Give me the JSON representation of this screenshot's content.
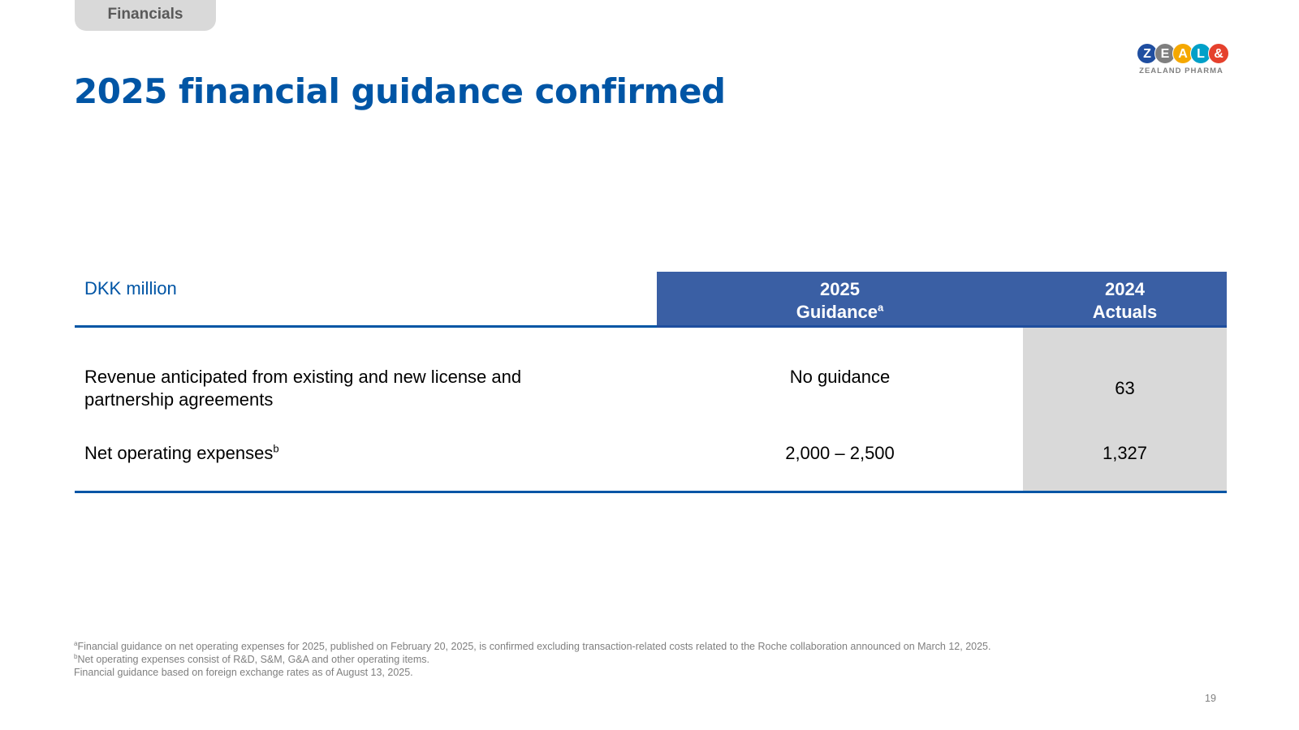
{
  "section_tab": "Financials",
  "title": "2025 financial guidance confirmed",
  "logo": {
    "letters": [
      "Z",
      "E",
      "A",
      "L",
      "&"
    ],
    "colors": [
      "#1f4ea0",
      "#7f7f7f",
      "#f5a800",
      "#00a0c8",
      "#e5412d"
    ],
    "tagline": "ZEALAND PHARMA"
  },
  "table": {
    "unit_label": "DKK million",
    "columns": [
      {
        "line1": "2025",
        "line2": "Guidance",
        "sup": "a"
      },
      {
        "line1": "2024",
        "line2": "Actuals",
        "sup": ""
      }
    ],
    "rows": [
      {
        "label": "Revenue anticipated from existing and new license and partnership agreements",
        "label_sup": "",
        "guidance": "No guidance",
        "actuals": "63"
      },
      {
        "label": "Net operating expenses",
        "label_sup": "b",
        "guidance": "2,000 – 2,500",
        "actuals": "1,327"
      }
    ]
  },
  "footnotes": [
    {
      "sup": "a",
      "text": "Financial guidance on net operating expenses for 2025, published on February 20, 2025, is confirmed excluding transaction-related costs related to the Roche collaboration announced on March 12, 2025."
    },
    {
      "sup": "b",
      "text": "Net operating expenses consist of R&D, S&M, G&A and other operating items."
    },
    {
      "sup": "",
      "text": "Financial guidance based on foreign exchange rates as of August 13, 2025."
    }
  ],
  "page_number": "19",
  "colors": {
    "title_blue": "#0055a5",
    "header_fill": "#3a5fa4",
    "actuals_fill": "#d9d9d9",
    "tab_fill": "#d9d9d9"
  }
}
